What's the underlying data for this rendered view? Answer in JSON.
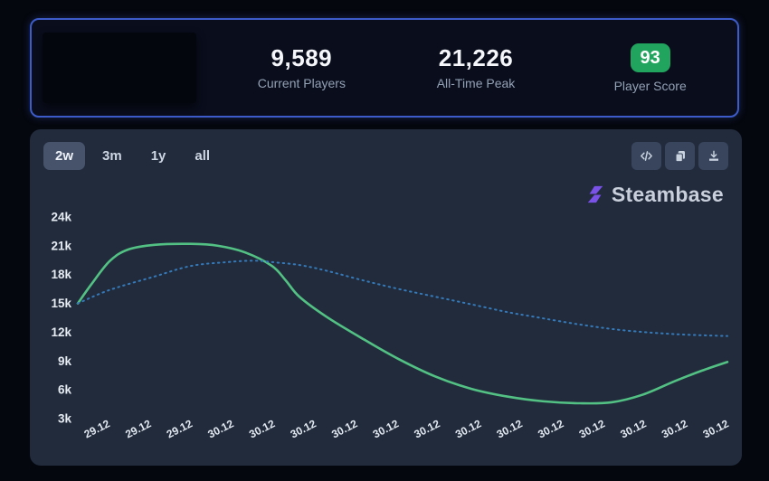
{
  "stats_card": {
    "border_color": "#3d5cc9",
    "stats": [
      {
        "value": "9,589",
        "label": "Current Players"
      },
      {
        "value": "21,226",
        "label": "All-Time Peak"
      },
      {
        "value": "93",
        "label": "Player Score",
        "badge_color": "#21a45d"
      }
    ]
  },
  "toolbar": {
    "ranges": [
      {
        "label": "2w",
        "active": true
      },
      {
        "label": "3m",
        "active": false
      },
      {
        "label": "1y",
        "active": false
      },
      {
        "label": "all",
        "active": false
      }
    ],
    "icon_buttons": [
      "embed-code",
      "copy",
      "download"
    ]
  },
  "brand": {
    "name": "Steambase",
    "icon_color": "#7a52e8"
  },
  "chart_data": {
    "type": "line",
    "title": "",
    "xlabel": "",
    "ylabel": "",
    "grid": false,
    "legend": "none",
    "ylim_k": [
      3,
      24
    ],
    "yticks": [
      "24k",
      "21k",
      "18k",
      "15k",
      "12k",
      "9k",
      "6k",
      "3k"
    ],
    "xticks": [
      "29.12",
      "29.12",
      "29.12",
      "30.12",
      "30.12",
      "30.12",
      "30.12",
      "30.12",
      "30.12",
      "30.12",
      "30.12",
      "30.12",
      "30.12",
      "30.12",
      "30.12",
      "30.12"
    ],
    "series": [
      {
        "name": "player-count",
        "color": "#53c183",
        "style": "solid",
        "points": [
          [
            0.0,
            15.0
          ],
          [
            0.021,
            17.0
          ],
          [
            0.049,
            19.4
          ],
          [
            0.077,
            20.6
          ],
          [
            0.118,
            21.1
          ],
          [
            0.174,
            21.2
          ],
          [
            0.216,
            21.0
          ],
          [
            0.258,
            20.3
          ],
          [
            0.299,
            18.9
          ],
          [
            0.32,
            17.4
          ],
          [
            0.341,
            15.7
          ],
          [
            0.383,
            13.6
          ],
          [
            0.439,
            11.3
          ],
          [
            0.494,
            9.2
          ],
          [
            0.55,
            7.4
          ],
          [
            0.606,
            6.1
          ],
          [
            0.661,
            5.3
          ],
          [
            0.717,
            4.8
          ],
          [
            0.773,
            4.6
          ],
          [
            0.822,
            4.7
          ],
          [
            0.87,
            5.5
          ],
          [
            0.919,
            6.9
          ],
          [
            0.961,
            8.0
          ],
          [
            1.0,
            8.9
          ]
        ]
      },
      {
        "name": "trend-dotted",
        "color": "#3579b8",
        "style": "dotted",
        "points": [
          [
            0.0,
            15.0
          ],
          [
            0.049,
            16.4
          ],
          [
            0.118,
            17.8
          ],
          [
            0.174,
            18.9
          ],
          [
            0.23,
            19.3
          ],
          [
            0.27,
            19.45
          ],
          [
            0.299,
            19.3
          ],
          [
            0.341,
            19.0
          ],
          [
            0.383,
            18.4
          ],
          [
            0.439,
            17.4
          ],
          [
            0.494,
            16.5
          ],
          [
            0.55,
            15.7
          ],
          [
            0.606,
            14.9
          ],
          [
            0.661,
            14.1
          ],
          [
            0.703,
            13.6
          ],
          [
            0.773,
            12.8
          ],
          [
            0.84,
            12.2
          ],
          [
            0.919,
            11.8
          ],
          [
            1.0,
            11.6
          ]
        ]
      }
    ]
  }
}
